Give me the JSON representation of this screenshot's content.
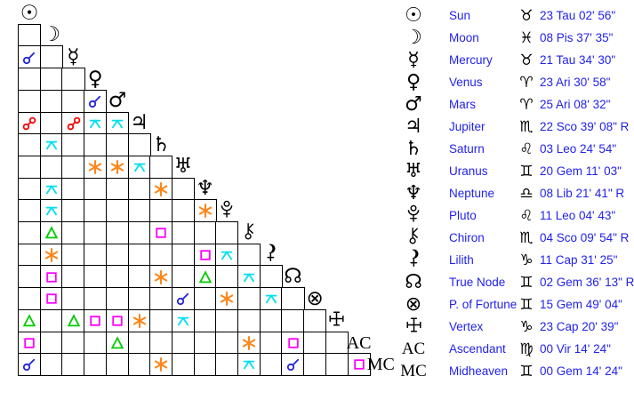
{
  "colors": {
    "background": "#ffffff",
    "grid_line": "#000000",
    "glyph_black": "#000000",
    "text_blue": "#2222ee"
  },
  "aspect_colors": {
    "conjunction": "#2222dd",
    "opposition": "#ff0000",
    "square": "#ff00ff",
    "trine": "#00cc00",
    "sextile": "#ff8518",
    "quincunx": "#00dff0"
  },
  "glyph_chars": {
    "sun": "☉",
    "moon": "☽",
    "mercury": "☿",
    "venus": "♀",
    "mars": "♂",
    "jupiter": "♃",
    "saturn": "♄",
    "uranus": "♅",
    "neptune": "♆",
    "true-node": "☊",
    "part-of-fortune": "⊗",
    "ascendant": "AC",
    "midheaven": "MC"
  },
  "svg_glyphs": [
    "pluto",
    "chiron",
    "lilith",
    "vertex"
  ],
  "sign_chars": {
    "taurus": "♉",
    "pisces": "♓",
    "aries": "♈",
    "scorpio": "♏",
    "leo": "♌",
    "gemini": "♊",
    "libra": "♎",
    "capricorn": "♑",
    "virgo": "♍"
  },
  "planets": [
    {
      "name": "Sun",
      "glyph": "sun",
      "sign": "taurus",
      "position": "23 Tau 02' 56\""
    },
    {
      "name": "Moon",
      "glyph": "moon",
      "sign": "pisces",
      "position": "08 Pis 37' 35\""
    },
    {
      "name": "Mercury",
      "glyph": "mercury",
      "sign": "taurus",
      "position": "21 Tau 34' 30\""
    },
    {
      "name": "Venus",
      "glyph": "venus",
      "sign": "aries",
      "position": "23 Ari 30' 58\""
    },
    {
      "name": "Mars",
      "glyph": "mars",
      "sign": "aries",
      "position": "25 Ari 08' 32\""
    },
    {
      "name": "Jupiter",
      "glyph": "jupiter",
      "sign": "scorpio",
      "position": "22 Sco 39' 08\" R"
    },
    {
      "name": "Saturn",
      "glyph": "saturn",
      "sign": "leo",
      "position": "03 Leo 24' 54\""
    },
    {
      "name": "Uranus",
      "glyph": "uranus",
      "sign": "gemini",
      "position": "20 Gem 11' 03\""
    },
    {
      "name": "Neptune",
      "glyph": "neptune",
      "sign": "libra",
      "position": "08 Lib 21' 41\" R"
    },
    {
      "name": "Pluto",
      "glyph": "pluto",
      "sign": "leo",
      "position": "11 Leo 04' 43\""
    },
    {
      "name": "Chiron",
      "glyph": "chiron",
      "sign": "scorpio",
      "position": "04 Sco 09' 54\" R"
    },
    {
      "name": "Lilith",
      "glyph": "lilith",
      "sign": "capricorn",
      "position": "11 Cap 31' 25\""
    },
    {
      "name": "True Node",
      "glyph": "true-node",
      "sign": "gemini",
      "position": "02 Gem 36' 13\" R"
    },
    {
      "name": "P. of Fortune",
      "glyph": "part-of-fortune",
      "sign": "gemini",
      "position": "15 Gem 49' 04\""
    },
    {
      "name": "Vertex",
      "glyph": "vertex",
      "sign": "capricorn",
      "position": "23 Cap 20' 39\""
    },
    {
      "name": "Ascendant",
      "glyph": "ascendant",
      "sign": "virgo",
      "position": "00 Vir 14' 24\""
    },
    {
      "name": "Midheaven",
      "glyph": "midheaven",
      "sign": "gemini",
      "position": "00 Gem 14' 24\""
    }
  ],
  "aspects": [
    {
      "row": 2,
      "col": 0,
      "type": "conjunction"
    },
    {
      "row": 4,
      "col": 3,
      "type": "conjunction"
    },
    {
      "row": 5,
      "col": 0,
      "type": "opposition"
    },
    {
      "row": 5,
      "col": 2,
      "type": "opposition"
    },
    {
      "row": 5,
      "col": 3,
      "type": "quincunx"
    },
    {
      "row": 5,
      "col": 4,
      "type": "quincunx"
    },
    {
      "row": 6,
      "col": 1,
      "type": "quincunx"
    },
    {
      "row": 7,
      "col": 3,
      "type": "sextile"
    },
    {
      "row": 7,
      "col": 4,
      "type": "sextile"
    },
    {
      "row": 7,
      "col": 5,
      "type": "quincunx"
    },
    {
      "row": 8,
      "col": 1,
      "type": "quincunx"
    },
    {
      "row": 8,
      "col": 6,
      "type": "sextile"
    },
    {
      "row": 9,
      "col": 1,
      "type": "quincunx"
    },
    {
      "row": 9,
      "col": 8,
      "type": "sextile"
    },
    {
      "row": 10,
      "col": 1,
      "type": "trine"
    },
    {
      "row": 10,
      "col": 6,
      "type": "square"
    },
    {
      "row": 11,
      "col": 1,
      "type": "sextile"
    },
    {
      "row": 11,
      "col": 8,
      "type": "square"
    },
    {
      "row": 11,
      "col": 9,
      "type": "quincunx"
    },
    {
      "row": 12,
      "col": 1,
      "type": "square"
    },
    {
      "row": 12,
      "col": 6,
      "type": "sextile"
    },
    {
      "row": 12,
      "col": 8,
      "type": "trine"
    },
    {
      "row": 12,
      "col": 10,
      "type": "quincunx"
    },
    {
      "row": 13,
      "col": 1,
      "type": "square"
    },
    {
      "row": 13,
      "col": 7,
      "type": "conjunction"
    },
    {
      "row": 13,
      "col": 9,
      "type": "sextile"
    },
    {
      "row": 13,
      "col": 11,
      "type": "quincunx"
    },
    {
      "row": 14,
      "col": 0,
      "type": "trine"
    },
    {
      "row": 14,
      "col": 2,
      "type": "trine"
    },
    {
      "row": 14,
      "col": 3,
      "type": "square"
    },
    {
      "row": 14,
      "col": 4,
      "type": "square"
    },
    {
      "row": 14,
      "col": 5,
      "type": "sextile"
    },
    {
      "row": 14,
      "col": 7,
      "type": "quincunx"
    },
    {
      "row": 15,
      "col": 0,
      "type": "square"
    },
    {
      "row": 15,
      "col": 4,
      "type": "trine"
    },
    {
      "row": 15,
      "col": 10,
      "type": "sextile"
    },
    {
      "row": 15,
      "col": 12,
      "type": "square"
    },
    {
      "row": 16,
      "col": 0,
      "type": "conjunction"
    },
    {
      "row": 16,
      "col": 6,
      "type": "sextile"
    },
    {
      "row": 16,
      "col": 10,
      "type": "quincunx"
    },
    {
      "row": 16,
      "col": 12,
      "type": "conjunction"
    },
    {
      "row": 16,
      "col": 15,
      "type": "square"
    }
  ]
}
